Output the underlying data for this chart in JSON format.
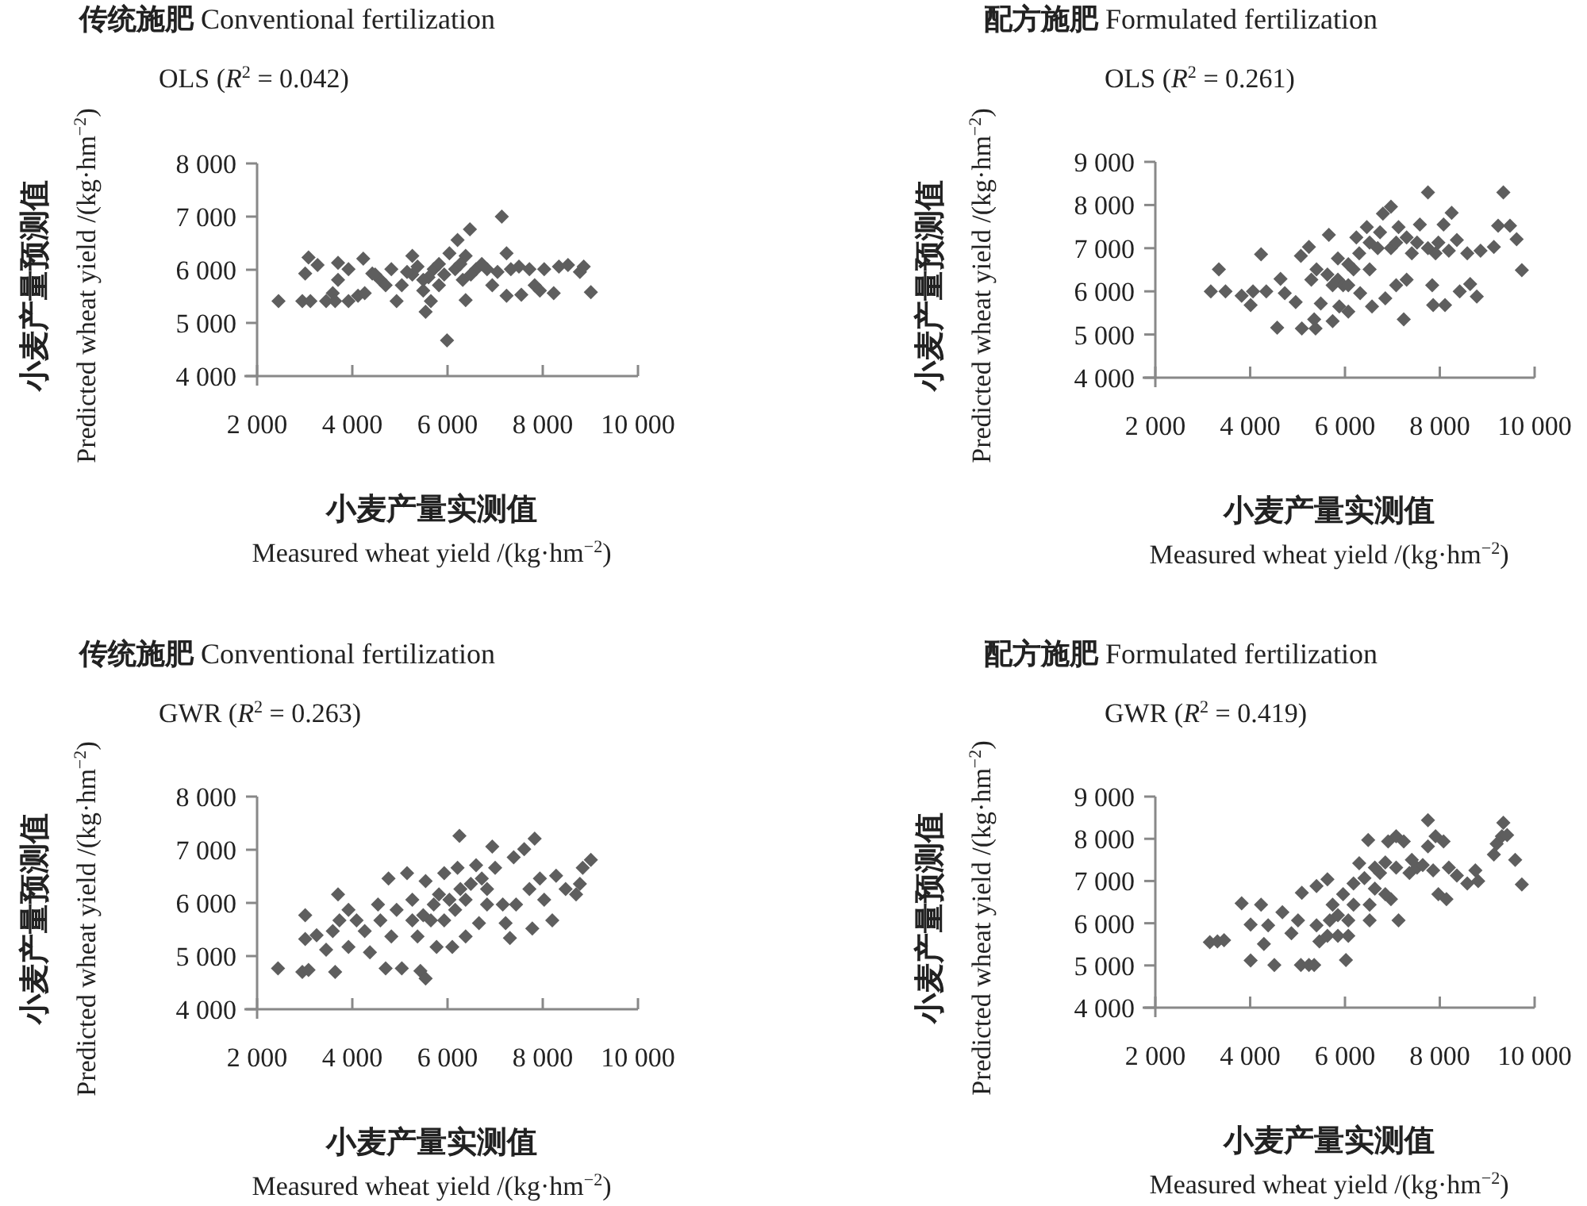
{
  "chart_data": [
    {
      "type": "scatter",
      "title": "**传统施肥** Conventional fertilization",
      "subtitle": "OLS (*R*$^{2}$ = 0.042)",
      "xlabel": "**小麦产量实测值**\nMeasured wheat yield /(kg·hm$^{−2}$)",
      "ylabel": "**小麦产量预测值**\nPredicted wheat yield /(kg·hm$^{−2}$)",
      "color": "#5e5e5e",
      "marker": "diamond",
      "xlim": [
        2000,
        10000
      ],
      "ylim": [
        4000,
        8000
      ],
      "xticks": [
        {
          "value": 2000,
          "label": "2 000"
        },
        {
          "value": 4000,
          "label": "4 000"
        },
        {
          "value": 6000,
          "label": "6 000"
        },
        {
          "value": 8000,
          "label": "8 000"
        },
        {
          "value": 10000,
          "label": "10 000"
        }
      ],
      "yticks": [
        {
          "value": 4000,
          "label": "4 000"
        },
        {
          "value": 5000,
          "label": "5 000"
        },
        {
          "value": 6000,
          "label": "6 000"
        },
        {
          "value": 7000,
          "label": "7 000"
        },
        {
          "value": 8000,
          "label": "8 000"
        }
      ],
      "x": [
        2450,
        2950,
        3120,
        3010,
        3080,
        3270,
        3450,
        3590,
        3700,
        3700,
        3640,
        3920,
        3920,
        4120,
        4230,
        4260,
        4420,
        4590,
        4820,
        5040,
        4930,
        5260,
        5260,
        5490,
        5540,
        5650,
        5710,
        5820,
        5990,
        6040,
        6160,
        6210,
        6320,
        6380,
        6380,
        6470,
        6600,
        6830,
        6940,
        7140,
        7240,
        7240,
        7330,
        7550,
        7720,
        7830,
        7940,
        8030,
        8230,
        8340,
        8530,
        8780,
        8860,
        9010,
        4480,
        4700,
        5150,
        5370,
        5600,
        5930,
        6270,
        6490,
        6720,
        7050,
        7500,
        5490,
        5820
      ],
      "values": [
        5410,
        5410,
        5410,
        5930,
        6230,
        6090,
        5410,
        5560,
        5810,
        6130,
        5410,
        6010,
        5410,
        5510,
        6210,
        5560,
        5930,
        5810,
        6010,
        5710,
        5410,
        6260,
        5910,
        5610,
        5210,
        5410,
        6010,
        5710,
        4670,
        6310,
        6010,
        6560,
        5810,
        5430,
        6260,
        6760,
        6010,
        6010,
        5710,
        7000,
        6310,
        5510,
        6010,
        5530,
        6010,
        5710,
        5610,
        6010,
        5560,
        6060,
        6090,
        5960,
        6060,
        5580,
        5910,
        5710,
        5960,
        6060,
        5860,
        5910,
        6110,
        5910,
        6110,
        5960,
        6060,
        5810,
        6110
      ]
    },
    {
      "type": "scatter",
      "title": "**配方施肥** Formulated fertilization",
      "subtitle": "OLS (*R*$^{2}$ = 0.261)",
      "xlabel": "**小麦产量实测值**\nMeasured wheat yield /(kg·hm$^{−2}$)",
      "ylabel": "**小麦产量预测值**\nPredicted wheat yield /(kg·hm$^{−2}$)",
      "color": "#5e5e5e",
      "marker": "diamond",
      "xlim": [
        2000,
        10000
      ],
      "ylim": [
        4000,
        9000
      ],
      "xticks": [
        {
          "value": 2000,
          "label": "2 000"
        },
        {
          "value": 4000,
          "label": "4 000"
        },
        {
          "value": 6000,
          "label": "6 000"
        },
        {
          "value": 8000,
          "label": "8 000"
        },
        {
          "value": 10000,
          "label": "10 000"
        }
      ],
      "yticks": [
        {
          "value": 4000,
          "label": "4 000"
        },
        {
          "value": 5000,
          "label": "5 000"
        },
        {
          "value": 6000,
          "label": "6 000"
        },
        {
          "value": 7000,
          "label": "7 000"
        },
        {
          "value": 8000,
          "label": "8 000"
        },
        {
          "value": 9000,
          "label": "9 000"
        }
      ],
      "x": [
        3170,
        3340,
        3480,
        3820,
        4010,
        4060,
        4230,
        4340,
        4570,
        4640,
        4730,
        4960,
        5090,
        5070,
        5240,
        5350,
        5380,
        5490,
        5660,
        5740,
        5850,
        5880,
        5960,
        6070,
        6180,
        6240,
        6320,
        6460,
        6520,
        6570,
        6690,
        6800,
        6850,
        6970,
        6970,
        7080,
        7130,
        7240,
        7300,
        7410,
        7580,
        7750,
        7840,
        7860,
        7910,
        8080,
        8110,
        8250,
        8360,
        8420,
        8580,
        8640,
        8780,
        8860,
        9140,
        9230,
        9340,
        9480,
        9620,
        9730,
        5290,
        5630,
        5850,
        6070,
        6300,
        6520,
        6740,
        7080,
        7300,
        7520,
        7750,
        7970,
        8190,
        5400,
        5740,
        6070
      ],
      "values": [
        6000,
        6510,
        6000,
        5900,
        5680,
        6000,
        6860,
        6000,
        5160,
        6290,
        5960,
        5750,
        5140,
        6820,
        7030,
        5350,
        5140,
        5720,
        7310,
        5310,
        6270,
        5650,
        6140,
        5530,
        6510,
        7250,
        5960,
        7490,
        6510,
        5650,
        7000,
        7800,
        5840,
        7960,
        7000,
        6140,
        7490,
        5350,
        6270,
        6880,
        7550,
        8290,
        6140,
        5680,
        6880,
        7550,
        5680,
        7820,
        7190,
        6000,
        6880,
        6170,
        5880,
        6940,
        7030,
        7520,
        8290,
        7520,
        7210,
        6490,
        6270,
        6390,
        6760,
        6630,
        6880,
        7130,
        7370,
        7130,
        7250,
        7130,
        7000,
        7130,
        6940,
        6510,
        6140,
        6140
      ]
    },
    {
      "type": "scatter",
      "title": "**传统施肥** Conventional fertilization",
      "subtitle": "GWR (*R*$^{2}$ = 0.263)",
      "xlabel": "**小麦产量实测值**\nMeasured wheat yield /(kg·hm$^{−2}$)",
      "ylabel": "**小麦产量预测值**\nPredicted wheat yield /(kg·hm$^{−2}$)",
      "color": "#5e5e5e",
      "marker": "diamond",
      "xlim": [
        2000,
        10000
      ],
      "ylim": [
        4000,
        8000
      ],
      "xticks": [
        {
          "value": 2000,
          "label": "2 000"
        },
        {
          "value": 4000,
          "label": "4 000"
        },
        {
          "value": 6000,
          "label": "6 000"
        },
        {
          "value": 8000,
          "label": "8 000"
        },
        {
          "value": 10000,
          "label": "10 000"
        }
      ],
      "yticks": [
        {
          "value": 4000,
          "label": "4 000"
        },
        {
          "value": 5000,
          "label": "5 000"
        },
        {
          "value": 6000,
          "label": "6 000"
        },
        {
          "value": 7000,
          "label": "7 000"
        },
        {
          "value": 8000,
          "label": "8 000"
        }
      ],
      "x": [
        2440,
        2950,
        3080,
        3010,
        3010,
        3250,
        3450,
        3590,
        3640,
        3700,
        3730,
        3920,
        3920,
        4090,
        4260,
        4370,
        4540,
        4590,
        4700,
        4760,
        4820,
        5040,
        5150,
        5260,
        5370,
        5430,
        5540,
        5540,
        5650,
        5770,
        5820,
        5930,
        6100,
        6160,
        6210,
        6250,
        6380,
        6380,
        6600,
        6660,
        6830,
        6940,
        7000,
        7160,
        7220,
        7310,
        7390,
        7440,
        7610,
        7720,
        7780,
        7830,
        7940,
        8030,
        8200,
        8280,
        8480,
        8700,
        8780,
        8840,
        9010,
        4930,
        5490,
        5710,
        6040,
        6270,
        6490,
        5930,
        5260,
        6720,
        6830
      ],
      "values": [
        4770,
        4700,
        4740,
        5770,
        5320,
        5390,
        5120,
        5470,
        4700,
        6160,
        5670,
        5170,
        5870,
        5670,
        5470,
        5070,
        5970,
        5670,
        4770,
        6460,
        5370,
        4770,
        6560,
        6060,
        5370,
        4720,
        4580,
        6410,
        5670,
        5170,
        6160,
        6560,
        5170,
        5870,
        6660,
        7260,
        6060,
        5370,
        6710,
        5620,
        6260,
        7060,
        6660,
        5970,
        5620,
        5340,
        6860,
        5970,
        7010,
        6260,
        5520,
        7210,
        6460,
        6060,
        5670,
        6510,
        6260,
        6160,
        6360,
        6660,
        6810,
        5870,
        5770,
        5970,
        6060,
        6260,
        6360,
        5670,
        5670,
        6460,
        5970
      ]
    },
    {
      "type": "scatter",
      "title": "**配方施肥** Formulated fertilization",
      "subtitle": "GWR (*R*$^{2}$ = 0.419)",
      "xlabel": "**小麦产量实测值**\nMeasured wheat yield /(kg·hm$^{−2}$)",
      "ylabel": "**小麦产量预测值**\nPredicted wheat yield /(kg·hm$^{−2}$)",
      "color": "#5e5e5e",
      "marker": "diamond",
      "xlim": [
        2000,
        10000
      ],
      "ylim": [
        4000,
        9000
      ],
      "xticks": [
        {
          "value": 2000,
          "label": "2 000"
        },
        {
          "value": 4000,
          "label": "4 000"
        },
        {
          "value": 6000,
          "label": "6 000"
        },
        {
          "value": 8000,
          "label": "8 000"
        },
        {
          "value": 10000,
          "label": "10 000"
        }
      ],
      "yticks": [
        {
          "value": 4000,
          "label": "4 000"
        },
        {
          "value": 5000,
          "label": "5 000"
        },
        {
          "value": 6000,
          "label": "6 000"
        },
        {
          "value": 7000,
          "label": "7 000"
        },
        {
          "value": 8000,
          "label": "8 000"
        },
        {
          "value": 9000,
          "label": "9 000"
        }
      ],
      "x": [
        3150,
        3310,
        3450,
        3820,
        4010,
        4010,
        4230,
        4290,
        4380,
        4510,
        4680,
        4870,
        5010,
        5070,
        5090,
        5240,
        5350,
        5400,
        5460,
        5630,
        5680,
        5850,
        6020,
        6070,
        6180,
        6300,
        6490,
        6520,
        6630,
        6740,
        6910,
        6970,
        7080,
        7130,
        7240,
        7360,
        7520,
        7750,
        7750,
        7910,
        7970,
        8080,
        8140,
        8190,
        8360,
        8580,
        8750,
        8810,
        9140,
        9200,
        9310,
        9340,
        9420,
        9590,
        9730,
        5740,
        5960,
        6180,
        6410,
        6630,
        6850,
        7080,
        7410,
        7640,
        7860,
        5850,
        6070,
        6520,
        6850,
        5400,
        5630
      ],
      "values": [
        5550,
        5570,
        5600,
        6470,
        5970,
        5120,
        6440,
        5510,
        5950,
        5010,
        6260,
        5760,
        6070,
        5010,
        6720,
        5010,
        5010,
        6880,
        5570,
        7040,
        6070,
        5700,
        5130,
        6070,
        6440,
        7420,
        7970,
        6070,
        6820,
        7190,
        7940,
        6570,
        8060,
        6070,
        7940,
        7190,
        7320,
        8440,
        7820,
        8060,
        6690,
        7940,
        6570,
        7320,
        7130,
        6940,
        7250,
        7000,
        7630,
        7880,
        8060,
        8380,
        8090,
        7500,
        6920,
        6440,
        6690,
        6940,
        7070,
        7320,
        7440,
        7320,
        7500,
        7380,
        7250,
        6190,
        5700,
        6440,
        6690,
        5950,
        5700
      ]
    }
  ]
}
